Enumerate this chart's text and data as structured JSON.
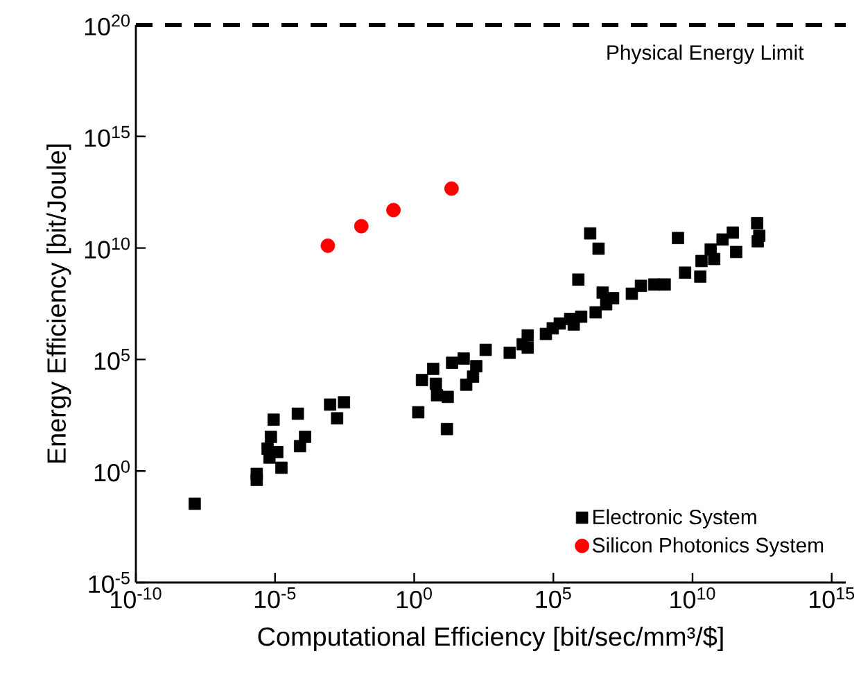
{
  "chart_data": {
    "type": "scatter",
    "xlabel": "Computational Efficiency [bit/sec/mm³/$]",
    "ylabel": "Energy Efficiency [bit/Joule]",
    "log": "xy",
    "xlim": [
      1e-10,
      3200000000000000.0
    ],
    "ylim": [
      1e-05,
      1e+20
    ],
    "xticks": [
      {
        "value": 1e-10,
        "label": "10$^{-10}$"
      },
      {
        "value": 1e-05,
        "label": "10$^{-5}$"
      },
      {
        "value": 1,
        "label": "10$^{0}$"
      },
      {
        "value": 100000.0,
        "label": "10$^{5}$"
      },
      {
        "value": 10000000000.0,
        "label": "10$^{10}$"
      },
      {
        "value": 1000000000000000.0,
        "label": "10$^{15}$"
      }
    ],
    "yticks": [
      {
        "value": 1e-05,
        "label": "10$^{-5}$"
      },
      {
        "value": 1,
        "label": "10$^{0}$"
      },
      {
        "value": 100000.0,
        "label": "10$^{5}$"
      },
      {
        "value": 10000000000.0,
        "label": "10$^{10}$"
      },
      {
        "value": 1000000000000000.0,
        "label": "10$^{15}$"
      },
      {
        "value": 1e+20,
        "label": "10$^{20}$"
      }
    ],
    "grid": false,
    "legend": "bottom right",
    "ref_lines": [
      {
        "axis": "y",
        "value": 1e+20,
        "label": "Physical Energy Limit",
        "color": "#000000",
        "line_style": "dashed"
      }
    ],
    "series": [
      {
        "name": "Electronic System",
        "color": "#000000",
        "marker": "square",
        "x": [
          1.3e-08,
          2.2e-06,
          2.2e-06,
          6.3e-06,
          5.4e-06,
          7.1e-06,
          8.9e-06,
          1.2e-05,
          1.7e-05,
          6.6e-05,
          7.9e-05,
          0.00012,
          0.00095,
          0.003,
          0.0017,
          1.4,
          15,
          1.9,
          4.8,
          6.0,
          6.6,
          16,
          23,
          60,
          170,
          130,
          74,
          370,
          2700.0,
          12000.0,
          7900.0,
          12000.0,
          54000.0,
          95000.0,
          170000.0,
          400000.0,
          540000.0,
          1000000.0,
          3300000.0,
          790000.0,
          2100000.0,
          4200000.0,
          5900000.0,
          7900000.0,
          14000000.0,
          66000000.0,
          140000000.0,
          420000000.0,
          1000000000.0,
          3000000000.0,
          5400000000.0,
          19000000000.0,
          21000000000.0,
          45000000000.0,
          60000000000.0,
          120000000000.0,
          280000000000.0,
          370000000000.0,
          2100000000000.0,
          2500000000000.0,
          2200000000000.0
        ],
        "values": [
          0.034,
          0.74,
          0.4,
          4.0,
          10,
          34,
          200,
          7.1,
          1.4,
          370,
          13,
          34,
          950,
          1200,
          230,
          430,
          76,
          12000.0,
          38000.0,
          8100.0,
          2500.0,
          2100.0,
          71000.0,
          110000.0,
          50000.0,
          17000.0,
          7400.0,
          270000.0,
          200000.0,
          1200000.0,
          480000.0,
          340000.0,
          1400000.0,
          2500000.0,
          4100000.0,
          6600000.0,
          3700000.0,
          8300000.0,
          13000000.0,
          380000000.0,
          45000000000.0,
          9300000000.0,
          100000000.0,
          30000000.0,
          56000000.0,
          89000000.0,
          200000000.0,
          230000000.0,
          230000000.0,
          28000000000.0,
          780000000.0,
          520000000.0,
          2600000000.0,
          8500000000.0,
          3200000000.0,
          24000000000.0,
          49000000000.0,
          6600000000.0,
          130000000000.0,
          35000000000.0,
          20000000000.0
        ]
      },
      {
        "name": "Silicon Photonics System",
        "color": "#ff0000",
        "marker": "circle",
        "x": [
          0.00079,
          0.0126,
          0.18,
          22
        ],
        "values": [
          12600000000.0,
          95000000000.0,
          500000000000.0,
          4600000000000.0
        ]
      }
    ]
  }
}
